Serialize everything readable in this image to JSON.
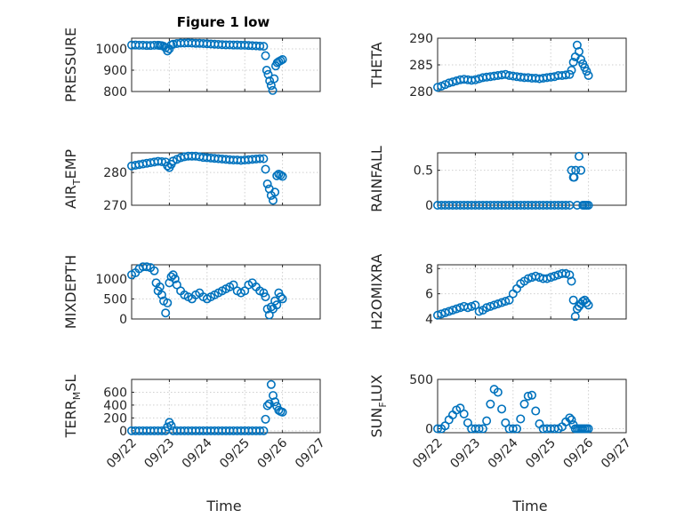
{
  "figure_title": "Figure 1 low",
  "colors": {
    "marker": "#0072BD",
    "axes": "#262626",
    "grid": "#cfcfcf"
  },
  "chart_data": [
    {
      "id": "pressure",
      "type": "scatter",
      "title": "Figure 1 low",
      "ylabel": "PRESSURE",
      "ylabel_sub": null,
      "ylabel_rest": null,
      "ylim": [
        800,
        1050
      ],
      "yticks": [
        800,
        900,
        1000
      ],
      "ytick_labels": [
        "800",
        "900",
        "1000"
      ],
      "xlim": [
        0,
        5
      ],
      "xticks": [
        0,
        1,
        2,
        3,
        4,
        5
      ],
      "xtick_labels": [
        "09/22",
        "09/23",
        "09/24",
        "09/25",
        "09/26",
        "09/27"
      ],
      "xlabel": "",
      "x": [
        0,
        0.1,
        0.2,
        0.3,
        0.4,
        0.5,
        0.6,
        0.7,
        0.75,
        0.8,
        0.85,
        0.9,
        0.95,
        1.0,
        1.05,
        1.1,
        1.2,
        1.3,
        1.4,
        1.5,
        1.6,
        1.7,
        1.8,
        1.9,
        2.0,
        2.1,
        2.2,
        2.3,
        2.4,
        2.5,
        2.6,
        2.7,
        2.8,
        2.9,
        3.0,
        3.1,
        3.2,
        3.3,
        3.4,
        3.5,
        3.55,
        3.58,
        3.62,
        3.66,
        3.7,
        3.74,
        3.78,
        3.82,
        3.86,
        3.9,
        3.95,
        4.0
      ],
      "y": [
        1018,
        1018,
        1017,
        1017,
        1016,
        1016,
        1017,
        1017,
        1016,
        1015,
        1012,
        1005,
        990,
        1000,
        1018,
        1022,
        1025,
        1027,
        1027,
        1028,
        1027,
        1026,
        1026,
        1025,
        1024,
        1023,
        1022,
        1021,
        1020,
        1019,
        1019,
        1018,
        1018,
        1017,
        1017,
        1016,
        1015,
        1014,
        1013,
        1012,
        968,
        900,
        880,
        850,
        828,
        805,
        860,
        920,
        935,
        940,
        945,
        950
      ]
    },
    {
      "id": "theta",
      "type": "scatter",
      "ylabel": "THETA",
      "ylabel_sub": null,
      "ylabel_rest": null,
      "ylim": [
        280,
        290
      ],
      "yticks": [
        280,
        285,
        290
      ],
      "ytick_labels": [
        "280",
        "285",
        "290"
      ],
      "xlim": [
        0,
        5
      ],
      "xticks": [
        0,
        1,
        2,
        3,
        4,
        5
      ],
      "xtick_labels": [
        "09/22",
        "09/23",
        "09/24",
        "09/25",
        "09/26",
        "09/27"
      ],
      "xlabel": "",
      "x": [
        0,
        0.1,
        0.2,
        0.3,
        0.4,
        0.5,
        0.6,
        0.7,
        0.8,
        0.9,
        1.0,
        1.1,
        1.2,
        1.3,
        1.4,
        1.5,
        1.6,
        1.7,
        1.8,
        1.9,
        2.0,
        2.1,
        2.2,
        2.3,
        2.4,
        2.5,
        2.6,
        2.7,
        2.8,
        2.9,
        3.0,
        3.1,
        3.2,
        3.3,
        3.4,
        3.5,
        3.55,
        3.6,
        3.65,
        3.7,
        3.75,
        3.8,
        3.85,
        3.9,
        3.95,
        4.0
      ],
      "y": [
        280.8,
        281.0,
        281.3,
        281.6,
        281.8,
        282.0,
        282.2,
        282.3,
        282.2,
        282.1,
        282.2,
        282.4,
        282.6,
        282.7,
        282.8,
        282.9,
        283.0,
        283.1,
        283.2,
        283.0,
        282.9,
        282.8,
        282.7,
        282.6,
        282.6,
        282.5,
        282.5,
        282.4,
        282.5,
        282.6,
        282.7,
        282.8,
        283.0,
        283.0,
        283.1,
        283.2,
        284.0,
        285.5,
        286.5,
        288.7,
        287.5,
        286.0,
        285.2,
        284.5,
        283.8,
        283.0
      ]
    },
    {
      "id": "air_temp",
      "type": "scatter",
      "ylabel": "AIR",
      "ylabel_sub": "T",
      "ylabel_rest": "EMP",
      "ylim": [
        270,
        286
      ],
      "yticks": [
        270,
        280
      ],
      "ytick_labels": [
        "270",
        "280"
      ],
      "xlim": [
        0,
        5
      ],
      "xticks": [
        0,
        1,
        2,
        3,
        4,
        5
      ],
      "xtick_labels": [
        "09/22",
        "09/23",
        "09/24",
        "09/25",
        "09/26",
        "09/27"
      ],
      "xlabel": "",
      "x": [
        0,
        0.1,
        0.2,
        0.3,
        0.4,
        0.5,
        0.6,
        0.7,
        0.8,
        0.9,
        0.95,
        1.0,
        1.05,
        1.1,
        1.2,
        1.3,
        1.4,
        1.5,
        1.6,
        1.7,
        1.8,
        1.9,
        2.0,
        2.1,
        2.2,
        2.3,
        2.4,
        2.5,
        2.6,
        2.7,
        2.8,
        2.9,
        3.0,
        3.1,
        3.2,
        3.3,
        3.4,
        3.5,
        3.55,
        3.6,
        3.65,
        3.7,
        3.75,
        3.8,
        3.85,
        3.9,
        3.95,
        4.0
      ],
      "y": [
        282,
        282.2,
        282.4,
        282.6,
        282.8,
        283,
        283.2,
        283.4,
        283.3,
        283.2,
        282.0,
        281.5,
        282.5,
        283.5,
        284.0,
        284.5,
        284.8,
        285.0,
        285.0,
        285.0,
        284.8,
        284.6,
        284.5,
        284.4,
        284.3,
        284.2,
        284.1,
        284.0,
        283.9,
        283.8,
        283.8,
        283.7,
        283.8,
        283.9,
        284.0,
        284.1,
        284.2,
        284.2,
        281.0,
        276.5,
        275.0,
        273.0,
        271.5,
        274.0,
        279.0,
        279.5,
        279.2,
        278.8
      ]
    },
    {
      "id": "rainfall",
      "type": "scatter",
      "ylabel": "RAINFALL",
      "ylabel_sub": null,
      "ylabel_rest": null,
      "ylim": [
        0,
        0.75
      ],
      "yticks": [
        0,
        0.5
      ],
      "ytick_labels": [
        "0",
        "0.5"
      ],
      "xlim": [
        0,
        5
      ],
      "xticks": [
        0,
        1,
        2,
        3,
        4,
        5
      ],
      "xtick_labels": [
        "09/22",
        "09/23",
        "09/24",
        "09/25",
        "09/26",
        "09/27"
      ],
      "xlabel": "",
      "x": [
        0,
        0.1,
        0.2,
        0.3,
        0.4,
        0.5,
        0.6,
        0.7,
        0.8,
        0.9,
        1.0,
        1.1,
        1.2,
        1.3,
        1.4,
        1.5,
        1.6,
        1.7,
        1.8,
        1.9,
        2.0,
        2.1,
        2.2,
        2.3,
        2.4,
        2.5,
        2.6,
        2.7,
        2.8,
        2.9,
        3.0,
        3.1,
        3.2,
        3.3,
        3.4,
        3.5,
        3.55,
        3.6,
        3.62,
        3.66,
        3.7,
        3.75,
        3.8,
        3.85,
        3.9,
        3.95,
        4.0
      ],
      "y": [
        0,
        0,
        0,
        0,
        0,
        0,
        0,
        0,
        0,
        0,
        0,
        0,
        0,
        0,
        0,
        0,
        0,
        0,
        0,
        0,
        0,
        0,
        0,
        0,
        0,
        0,
        0,
        0,
        0,
        0,
        0,
        0,
        0,
        0,
        0,
        0,
        0.5,
        0.4,
        0.4,
        0.5,
        0,
        0.7,
        0.5,
        0,
        0,
        0,
        0
      ]
    },
    {
      "id": "mixdepth",
      "type": "scatter",
      "ylabel": "MIXDEPTH",
      "ylabel_sub": null,
      "ylabel_rest": null,
      "ylim": [
        0,
        1350
      ],
      "yticks": [
        0,
        500,
        1000
      ],
      "ytick_labels": [
        "0",
        "500",
        "1000"
      ],
      "xlim": [
        0,
        5
      ],
      "xticks": [
        0,
        1,
        2,
        3,
        4,
        5
      ],
      "xtick_labels": [
        "09/22",
        "09/23",
        "09/24",
        "09/25",
        "09/26",
        "09/27"
      ],
      "xlabel": "",
      "x": [
        0,
        0.1,
        0.2,
        0.3,
        0.4,
        0.5,
        0.6,
        0.65,
        0.7,
        0.75,
        0.8,
        0.85,
        0.9,
        0.95,
        1.0,
        1.05,
        1.1,
        1.15,
        1.2,
        1.3,
        1.4,
        1.5,
        1.6,
        1.7,
        1.8,
        1.9,
        2.0,
        2.1,
        2.2,
        2.3,
        2.4,
        2.5,
        2.6,
        2.7,
        2.8,
        2.9,
        3.0,
        3.1,
        3.2,
        3.3,
        3.4,
        3.5,
        3.55,
        3.6,
        3.65,
        3.7,
        3.75,
        3.8,
        3.85,
        3.9,
        3.95,
        4.0
      ],
      "y": [
        1100,
        1150,
        1250,
        1300,
        1300,
        1280,
        1200,
        900,
        700,
        800,
        600,
        450,
        150,
        400,
        900,
        1050,
        1100,
        1000,
        850,
        700,
        600,
        550,
        500,
        600,
        650,
        550,
        500,
        550,
        600,
        650,
        700,
        750,
        800,
        850,
        700,
        650,
        700,
        850,
        900,
        800,
        700,
        650,
        550,
        250,
        100,
        300,
        250,
        450,
        350,
        650,
        550,
        500
      ]
    },
    {
      "id": "h2omixra",
      "type": "scatter",
      "ylabel": "H2OMIXRA",
      "ylabel_sub": null,
      "ylabel_rest": null,
      "ylim": [
        4,
        8.3
      ],
      "yticks": [
        4,
        6,
        8
      ],
      "ytick_labels": [
        "4",
        "6",
        "8"
      ],
      "xlim": [
        0,
        5
      ],
      "xticks": [
        0,
        1,
        2,
        3,
        4,
        5
      ],
      "xtick_labels": [
        "09/22",
        "09/23",
        "09/24",
        "09/25",
        "09/26",
        "09/27"
      ],
      "xlabel": "",
      "x": [
        0,
        0.1,
        0.2,
        0.3,
        0.4,
        0.5,
        0.6,
        0.7,
        0.8,
        0.9,
        1.0,
        1.1,
        1.2,
        1.3,
        1.4,
        1.5,
        1.6,
        1.7,
        1.8,
        1.9,
        2.0,
        2.1,
        2.2,
        2.3,
        2.4,
        2.5,
        2.6,
        2.7,
        2.8,
        2.9,
        3.0,
        3.1,
        3.2,
        3.3,
        3.4,
        3.5,
        3.55,
        3.6,
        3.65,
        3.7,
        3.75,
        3.8,
        3.85,
        3.9,
        3.95,
        4.0
      ],
      "y": [
        4.3,
        4.4,
        4.5,
        4.6,
        4.7,
        4.8,
        4.9,
        5.0,
        4.9,
        5.0,
        5.1,
        4.6,
        4.7,
        4.9,
        5.0,
        5.1,
        5.2,
        5.3,
        5.4,
        5.5,
        6.0,
        6.4,
        6.8,
        7.0,
        7.2,
        7.3,
        7.4,
        7.3,
        7.2,
        7.2,
        7.3,
        7.4,
        7.5,
        7.6,
        7.6,
        7.5,
        7.0,
        5.5,
        4.2,
        4.8,
        5.0,
        5.2,
        5.4,
        5.5,
        5.3,
        5.1
      ]
    },
    {
      "id": "terr_msl",
      "type": "scatter",
      "ylabel": "TERR",
      "ylabel_sub": "M",
      "ylabel_rest": "SL",
      "ylim": [
        -30,
        800
      ],
      "yticks": [
        0,
        200,
        400,
        600
      ],
      "ytick_labels": [
        "0",
        "200",
        "400",
        "600"
      ],
      "xlim": [
        0,
        5
      ],
      "xticks": [
        0,
        1,
        2,
        3,
        4,
        5
      ],
      "xtick_labels": [
        "09/22",
        "09/23",
        "09/24",
        "09/25",
        "09/26",
        "09/27"
      ],
      "xlabel": "Time",
      "x": [
        0,
        0.1,
        0.2,
        0.3,
        0.4,
        0.5,
        0.6,
        0.7,
        0.8,
        0.9,
        0.95,
        1.0,
        1.05,
        1.1,
        1.2,
        1.3,
        1.4,
        1.5,
        1.6,
        1.7,
        1.8,
        1.9,
        2.0,
        2.1,
        2.2,
        2.3,
        2.4,
        2.5,
        2.6,
        2.7,
        2.8,
        2.9,
        3.0,
        3.1,
        3.2,
        3.3,
        3.4,
        3.5,
        3.55,
        3.6,
        3.65,
        3.7,
        3.75,
        3.8,
        3.85,
        3.9,
        3.95,
        4.0
      ],
      "y": [
        0,
        0,
        0,
        0,
        0,
        0,
        0,
        0,
        0,
        0,
        60,
        130,
        80,
        0,
        0,
        0,
        0,
        0,
        0,
        0,
        0,
        0,
        0,
        0,
        0,
        0,
        0,
        0,
        0,
        0,
        0,
        0,
        0,
        0,
        0,
        0,
        0,
        0,
        180,
        390,
        420,
        720,
        550,
        450,
        380,
        320,
        300,
        290
      ]
    },
    {
      "id": "sun_flux",
      "type": "scatter",
      "ylabel": "SUN",
      "ylabel_sub": "F",
      "ylabel_rest": "LUX",
      "ylim": [
        -40,
        500
      ],
      "yticks": [
        0,
        500
      ],
      "ytick_labels": [
        "0",
        "500"
      ],
      "xlim": [
        0,
        5
      ],
      "xticks": [
        0,
        1,
        2,
        3,
        4,
        5
      ],
      "xtick_labels": [
        "09/22",
        "09/23",
        "09/24",
        "09/25",
        "09/26",
        "09/27"
      ],
      "xlabel": "Time",
      "x": [
        0,
        0.1,
        0.2,
        0.3,
        0.4,
        0.5,
        0.6,
        0.7,
        0.8,
        0.9,
        1.0,
        1.1,
        1.2,
        1.3,
        1.4,
        1.5,
        1.6,
        1.7,
        1.8,
        1.9,
        2.0,
        2.1,
        2.2,
        2.3,
        2.4,
        2.5,
        2.6,
        2.7,
        2.8,
        2.9,
        3.0,
        3.1,
        3.2,
        3.3,
        3.4,
        3.5,
        3.55,
        3.6,
        3.65,
        3.7,
        3.75,
        3.8,
        3.85,
        3.9,
        3.95,
        4.0
      ],
      "y": [
        0,
        0,
        30,
        90,
        140,
        190,
        210,
        150,
        60,
        0,
        0,
        0,
        0,
        80,
        250,
        400,
        370,
        200,
        60,
        0,
        0,
        0,
        100,
        250,
        330,
        340,
        180,
        50,
        0,
        0,
        0,
        0,
        0,
        20,
        70,
        110,
        90,
        40,
        0,
        0,
        0,
        0,
        0,
        0,
        0,
        0
      ]
    }
  ]
}
